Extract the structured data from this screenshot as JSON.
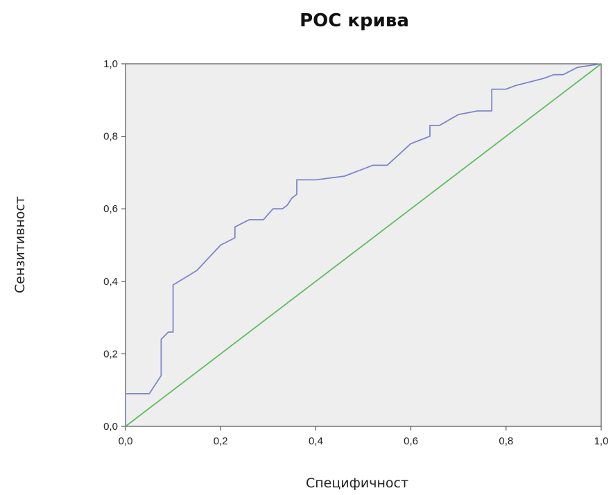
{
  "chart_data": {
    "type": "line",
    "title": "РОС крива",
    "xlabel": "Специфичност",
    "ylabel": "Сензитивност",
    "xlim": [
      0.0,
      1.0
    ],
    "ylim": [
      0.0,
      1.0
    ],
    "x_ticks": [
      "0,0",
      "0,2",
      "0,4",
      "0,6",
      "0,8",
      "1,0"
    ],
    "y_ticks": [
      "0,0",
      "0,2",
      "0,4",
      "0,6",
      "0,8",
      "1,0"
    ],
    "grid": false,
    "legend": "none",
    "colors": {
      "plot_background": "#eeeeee",
      "roc_curve": "#7f86c8",
      "reference_line": "#62bb62",
      "axis": "#333333"
    },
    "series": [
      {
        "x": [
          0.0,
          0.0,
          0.05,
          0.075,
          0.075,
          0.09,
          0.1,
          0.1,
          0.125,
          0.15,
          0.2,
          0.23,
          0.23,
          0.26,
          0.29,
          0.31,
          0.33,
          0.34,
          0.35,
          0.36,
          0.36,
          0.4,
          0.46,
          0.48,
          0.5,
          0.52,
          0.55,
          0.6,
          0.64,
          0.64,
          0.66,
          0.7,
          0.74,
          0.77,
          0.77,
          0.8,
          0.82,
          0.88,
          0.9,
          0.92,
          0.95,
          1.0
        ],
        "y": [
          0.0,
          0.09,
          0.09,
          0.14,
          0.24,
          0.26,
          0.26,
          0.39,
          0.41,
          0.43,
          0.5,
          0.52,
          0.55,
          0.57,
          0.57,
          0.6,
          0.6,
          0.61,
          0.63,
          0.64,
          0.68,
          0.68,
          0.69,
          0.7,
          0.71,
          0.72,
          0.72,
          0.78,
          0.8,
          0.83,
          0.83,
          0.86,
          0.87,
          0.87,
          0.93,
          0.93,
          0.94,
          0.96,
          0.97,
          0.97,
          0.99,
          1.0
        ]
      },
      {
        "x": [
          0.0,
          1.0
        ],
        "y": [
          0.0,
          1.0
        ]
      }
    ]
  }
}
